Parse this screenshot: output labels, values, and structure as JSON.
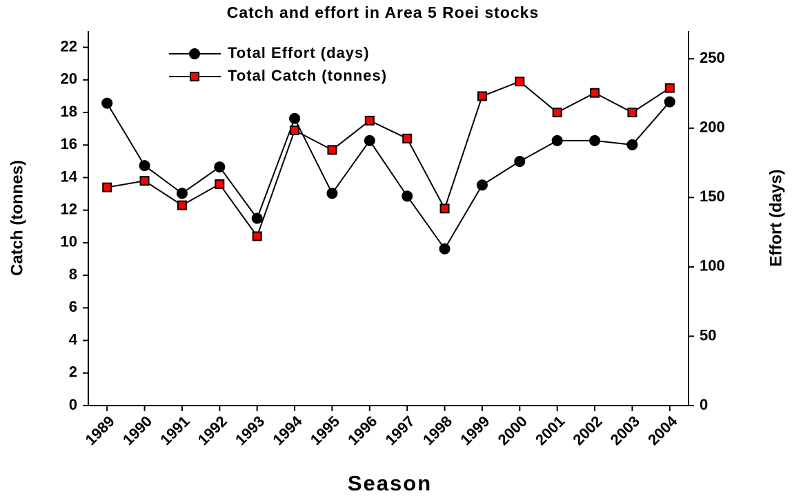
{
  "chart_data": {
    "type": "line",
    "title": "Catch and effort in Area 5 Roei stocks",
    "x_label": "Season",
    "y_label": "Catch (tonnes)",
    "y2_label": "Effort (days)",
    "categories": [
      "1989",
      "1990",
      "1991",
      "1992",
      "1993",
      "1994",
      "1995",
      "1996",
      "1997",
      "1998",
      "1999",
      "2000",
      "2001",
      "2002",
      "2003",
      "2004"
    ],
    "series": [
      {
        "name": "Total Effort (days)",
        "color": "#000000",
        "marker": "circle",
        "axis": "y2",
        "values": [
          218,
          173,
          153,
          172,
          135,
          207,
          153,
          191,
          151,
          113,
          159,
          176,
          191,
          191,
          188,
          219
        ]
      },
      {
        "name": "Total Catch (tonnes)",
        "color": "#ff0000",
        "marker": "square",
        "values": [
          13.4,
          13.8,
          12.3,
          13.6,
          10.4,
          16.9,
          15.7,
          17.5,
          16.4,
          12.1,
          19.0,
          19.9,
          18.0,
          19.2,
          18.0,
          19.5
        ]
      }
    ],
    "ylim": [
      0,
      23
    ],
    "yticks": [
      0,
      2,
      4,
      6,
      8,
      10,
      12,
      14,
      16,
      18,
      20,
      22
    ],
    "y2lim": [
      0,
      270
    ],
    "y2ticks": [
      0,
      50,
      100,
      150,
      200,
      250
    ],
    "legend": "top-left",
    "grid": false
  }
}
